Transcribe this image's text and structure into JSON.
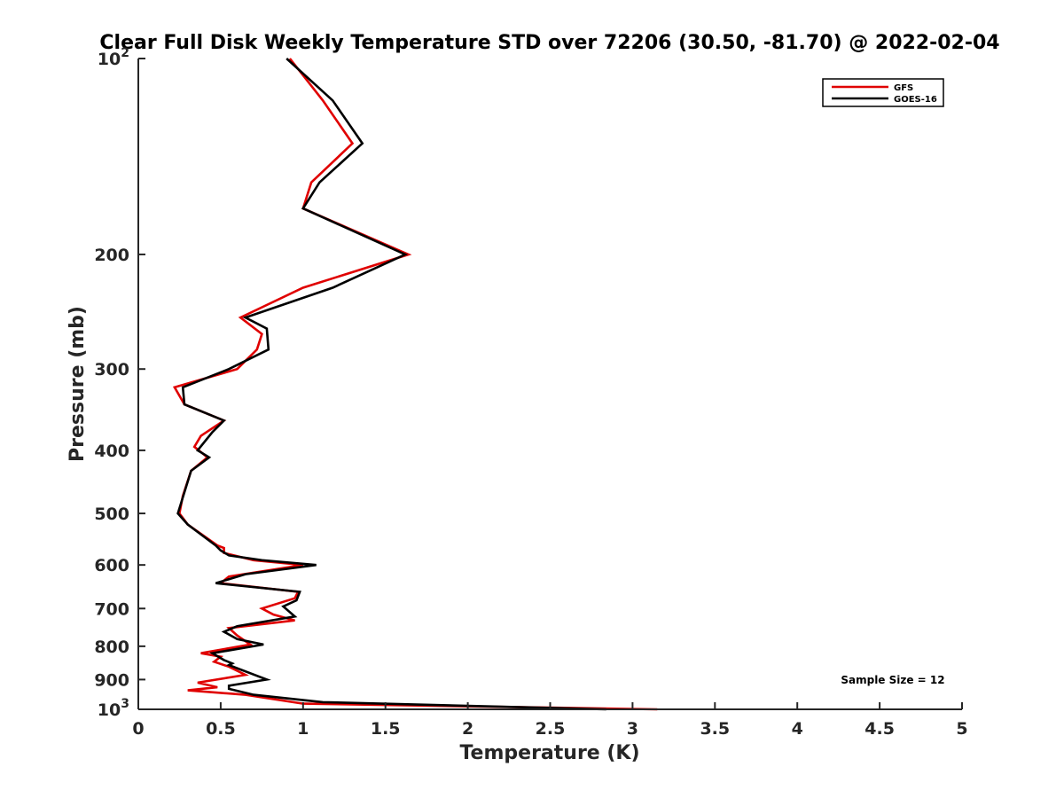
{
  "chart_data": {
    "type": "line",
    "title": "Clear Full Disk Weekly Temperature STD over 72206 (30.50, -81.70) @ 2022-02-04",
    "xlabel": "Temperature (K)",
    "ylabel": "Pressure (mb)",
    "x_scale": "linear",
    "y_scale": "log",
    "y_reversed": true,
    "xlim": [
      0,
      5
    ],
    "ylim": [
      100,
      1000
    ],
    "x_ticks": [
      0,
      0.5,
      1,
      1.5,
      2,
      2.5,
      3,
      3.5,
      4,
      4.5,
      5
    ],
    "x_tick_labels": [
      "0",
      "0.5",
      "1",
      "1.5",
      "2",
      "2.5",
      "3",
      "3.5",
      "4",
      "4.5",
      "5"
    ],
    "y_ticks": [
      100,
      200,
      300,
      400,
      500,
      600,
      700,
      800,
      900,
      1000
    ],
    "y_tick_labels": [
      {
        "base": "10",
        "exp": "2"
      },
      {
        "base": "200",
        "exp": ""
      },
      {
        "base": "300",
        "exp": ""
      },
      {
        "base": "400",
        "exp": ""
      },
      {
        "base": "500",
        "exp": ""
      },
      {
        "base": "600",
        "exp": ""
      },
      {
        "base": "700",
        "exp": ""
      },
      {
        "base": "800",
        "exp": ""
      },
      {
        "base": "900",
        "exp": ""
      },
      {
        "base": "10",
        "exp": "3"
      }
    ],
    "grid": false,
    "legend_position": "top-right",
    "annotation": "Sample Size = 12",
    "series": [
      {
        "name": "GFS",
        "color": "#e00000",
        "points": [
          [
            0.92,
            100
          ],
          [
            1.12,
            116
          ],
          [
            1.3,
            135
          ],
          [
            1.05,
            155
          ],
          [
            1.0,
            170
          ],
          [
            1.64,
            200
          ],
          [
            1.0,
            225
          ],
          [
            0.62,
            250
          ],
          [
            0.75,
            265
          ],
          [
            0.72,
            280
          ],
          [
            0.6,
            300
          ],
          [
            0.22,
            320
          ],
          [
            0.28,
            340
          ],
          [
            0.52,
            360
          ],
          [
            0.38,
            380
          ],
          [
            0.34,
            395
          ],
          [
            0.42,
            410
          ],
          [
            0.32,
            430
          ],
          [
            0.27,
            470
          ],
          [
            0.25,
            500
          ],
          [
            0.3,
            520
          ],
          [
            0.48,
            560
          ],
          [
            0.52,
            565
          ],
          [
            0.52,
            575
          ],
          [
            0.7,
            590
          ],
          [
            1.0,
            600
          ],
          [
            0.55,
            625
          ],
          [
            0.5,
            640
          ],
          [
            0.97,
            660
          ],
          [
            0.95,
            675
          ],
          [
            0.75,
            700
          ],
          [
            0.82,
            715
          ],
          [
            0.95,
            730
          ],
          [
            0.55,
            750
          ],
          [
            0.6,
            770
          ],
          [
            0.68,
            795
          ],
          [
            0.38,
            820
          ],
          [
            0.5,
            830
          ],
          [
            0.46,
            845
          ],
          [
            0.55,
            860
          ],
          [
            0.65,
            885
          ],
          [
            0.36,
            910
          ],
          [
            0.48,
            925
          ],
          [
            0.3,
            935
          ],
          [
            0.65,
            950
          ],
          [
            1.0,
            980
          ],
          [
            3.15,
            1000
          ]
        ]
      },
      {
        "name": "GOES-16",
        "color": "#000000",
        "points": [
          [
            0.9,
            100
          ],
          [
            1.18,
            116
          ],
          [
            1.36,
            135
          ],
          [
            1.1,
            155
          ],
          [
            1.0,
            170
          ],
          [
            1.62,
            200
          ],
          [
            1.18,
            225
          ],
          [
            0.65,
            250
          ],
          [
            0.78,
            260
          ],
          [
            0.79,
            280
          ],
          [
            0.55,
            300
          ],
          [
            0.27,
            320
          ],
          [
            0.28,
            340
          ],
          [
            0.52,
            360
          ],
          [
            0.45,
            375
          ],
          [
            0.36,
            400
          ],
          [
            0.43,
            410
          ],
          [
            0.32,
            430
          ],
          [
            0.24,
            500
          ],
          [
            0.3,
            520
          ],
          [
            0.47,
            560
          ],
          [
            0.5,
            570
          ],
          [
            0.55,
            580
          ],
          [
            0.75,
            590
          ],
          [
            1.08,
            600
          ],
          [
            0.65,
            620
          ],
          [
            0.47,
            640
          ],
          [
            0.98,
            660
          ],
          [
            0.96,
            680
          ],
          [
            0.88,
            695
          ],
          [
            0.95,
            720
          ],
          [
            0.6,
            745
          ],
          [
            0.52,
            760
          ],
          [
            0.6,
            780
          ],
          [
            0.76,
            795
          ],
          [
            0.45,
            820
          ],
          [
            0.52,
            840
          ],
          [
            0.57,
            850
          ],
          [
            0.55,
            855
          ],
          [
            0.78,
            900
          ],
          [
            0.55,
            920
          ],
          [
            0.55,
            930
          ],
          [
            0.7,
            950
          ],
          [
            1.12,
            975
          ],
          [
            2.84,
            1000
          ]
        ]
      }
    ]
  }
}
